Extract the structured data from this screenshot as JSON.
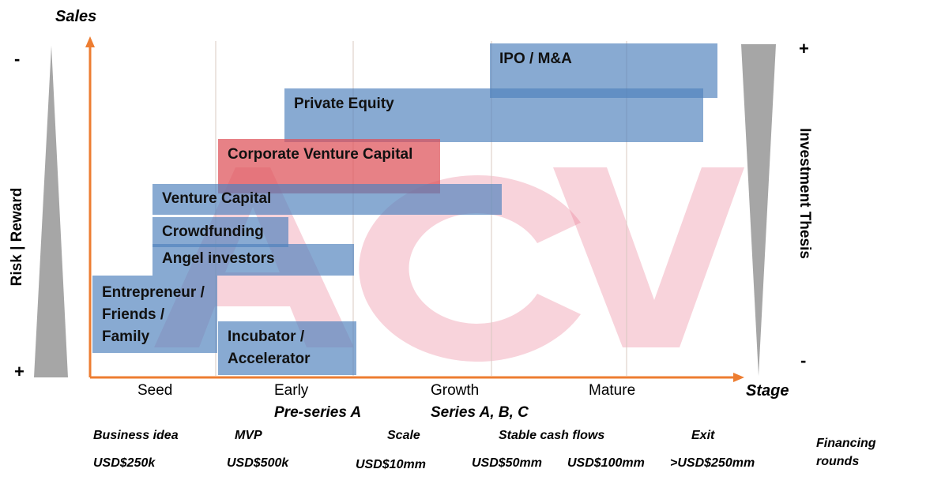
{
  "axes": {
    "y_label": "Sales",
    "x_label": "Stage",
    "left_label": "Risk | Reward",
    "right_label": "Investment Thesis",
    "left_top_sign": "-",
    "left_bottom_sign": "+",
    "right_top_sign": "+",
    "right_bottom_sign": "-"
  },
  "watermark": "ACV",
  "bars": [
    {
      "key": "ipo",
      "label": "IPO / M&A"
    },
    {
      "key": "pe",
      "label": "Private Equity"
    },
    {
      "key": "cvc",
      "label": "Corporate  Venture Capital"
    },
    {
      "key": "vc",
      "label": "Venture Capital"
    },
    {
      "key": "crowd",
      "label": "Crowdfunding"
    },
    {
      "key": "angel",
      "label": "Angel investors"
    },
    {
      "key": "eff",
      "label": "Entrepreneur / Friends / Family"
    },
    {
      "key": "inc",
      "label": "Incubator  / Accelerator"
    }
  ],
  "stages": [
    {
      "label": "Seed",
      "sub": ""
    },
    {
      "label": "Early",
      "sub": "Pre-series  A"
    },
    {
      "label": "Growth",
      "sub": "Series A, B, C"
    },
    {
      "label": "Mature",
      "sub": ""
    }
  ],
  "descriptors": [
    "Business idea",
    "MVP",
    "Scale",
    "Stable cash flows",
    "Exit"
  ],
  "amounts": [
    "USD$250k",
    "USD$500k",
    "USD$10mm",
    "USD$50mm",
    "USD$100mm",
    ">USD$250mm"
  ],
  "financing_label": "Financing rounds"
}
